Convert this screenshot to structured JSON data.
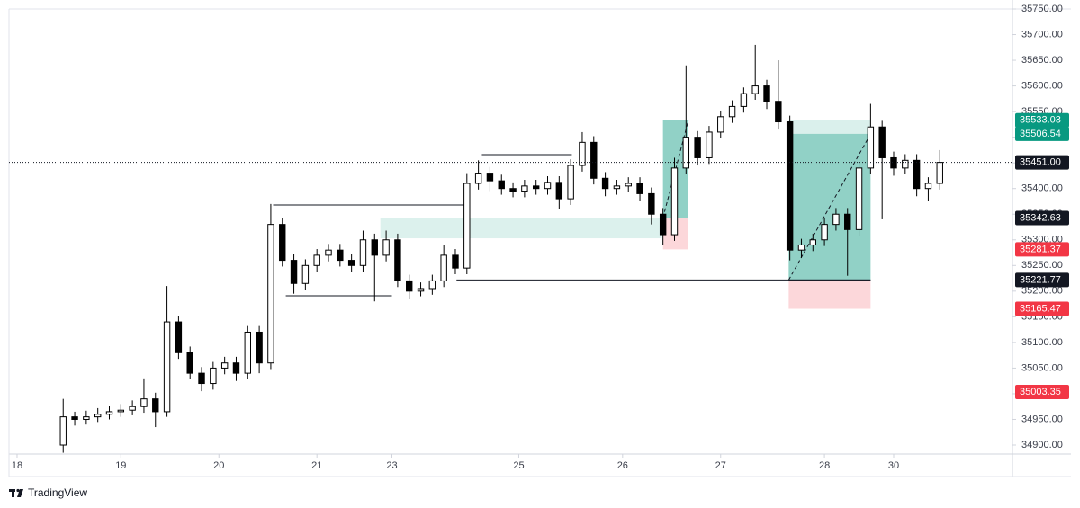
{
  "chart_data": {
    "type": "candlestick",
    "up_color": "#ffffff",
    "down_color": "#000000",
    "outline_color": "#000000",
    "xlim": [
      -4.7,
      82.3
    ],
    "xticks": [
      {
        "value": -4,
        "label": "18"
      },
      {
        "value": 5,
        "label": "19"
      },
      {
        "value": 13.5,
        "label": "20"
      },
      {
        "value": 22,
        "label": "21"
      },
      {
        "value": 28.5,
        "label": "23"
      },
      {
        "value": 39.5,
        "label": "25"
      },
      {
        "value": 48.5,
        "label": "26"
      },
      {
        "value": 57,
        "label": "27"
      },
      {
        "value": 66,
        "label": "28"
      },
      {
        "value": 72,
        "label": "30"
      }
    ],
    "ylim": [
      34882.5,
      35767.5
    ],
    "yticks": [
      {
        "value": 34900,
        "label": "34900.00"
      },
      {
        "value": 34950,
        "label": "34950.00"
      },
      {
        "value": 35000,
        "label": "35000.00"
      },
      {
        "value": 35050,
        "label": "35050.00"
      },
      {
        "value": 35100,
        "label": "35100.00"
      },
      {
        "value": 35150,
        "label": "35150.00"
      },
      {
        "value": 35200,
        "label": "35200.00"
      },
      {
        "value": 35250,
        "label": "35250.00"
      },
      {
        "value": 35300,
        "label": "35300.00"
      },
      {
        "value": 35350,
        "label": "35350.00"
      },
      {
        "value": 35400,
        "label": "35400.00"
      },
      {
        "value": 35450,
        "label": "35450.00"
      },
      {
        "value": 35500,
        "label": "35500.00"
      },
      {
        "value": 35550,
        "label": "35550.00"
      },
      {
        "value": 35600,
        "label": "35600.00"
      },
      {
        "value": 35650,
        "label": "35650.00"
      },
      {
        "value": 35700,
        "label": "35700.00"
      },
      {
        "value": 35750,
        "label": "35750.00"
      }
    ],
    "open": [
      34900,
      34955,
      34950,
      34955,
      34960,
      34965,
      34968,
      34975,
      34990,
      34965,
      35140,
      35080,
      35040,
      35020,
      35050,
      35060,
      35040,
      35120,
      35060,
      35330,
      35260,
      35215,
      35250,
      35270,
      35280,
      35260,
      35250,
      35300,
      35270,
      35300,
      35220,
      35200,
      35205,
      35220,
      35270,
      35245,
      35410,
      35430,
      35415,
      35400,
      35395,
      35405,
      35400,
      35412,
      35380,
      35445,
      35490,
      35420,
      35400,
      35405,
      35410,
      35390,
      35350,
      35310,
      35440,
      35500,
      35460,
      35510,
      35540,
      35560,
      35585,
      35600,
      35570,
      35530,
      35280,
      35290,
      35300,
      35330,
      35350,
      35320,
      35440,
      35520,
      35460,
      35440,
      35455,
      35400,
      35410
    ],
    "high": [
      34990,
      34965,
      34967,
      34972,
      34977,
      34980,
      34987,
      35030,
      35002,
      35210,
      35152,
      35092,
      35052,
      35062,
      35072,
      35072,
      35132,
      35132,
      35370,
      35342,
      35272,
      35262,
      35282,
      35292,
      35292,
      35272,
      35318,
      35312,
      35318,
      35312,
      35232,
      35217,
      35232,
      35290,
      35282,
      35430,
      35455,
      35442,
      35427,
      35412,
      35417,
      35417,
      35424,
      35424,
      35457,
      35510,
      35502,
      35432,
      35417,
      35422,
      35422,
      35402,
      35362,
      35460,
      35640,
      35512,
      35522,
      35552,
      35572,
      35597,
      35680,
      35612,
      35650,
      35542,
      35302,
      35312,
      35342,
      35362,
      35362,
      35452,
      35565,
      35532,
      35472,
      35467,
      35467,
      35422,
      35475
    ],
    "low": [
      34885,
      34938,
      34940,
      34945,
      34950,
      34955,
      34958,
      34963,
      34935,
      34955,
      35068,
      35028,
      35005,
      35008,
      35038,
      35025,
      35028,
      35040,
      35048,
      35248,
      35195,
      35203,
      35238,
      35258,
      35248,
      35238,
      35238,
      35180,
      35258,
      35208,
      35185,
      35190,
      35193,
      35208,
      35233,
      35233,
      35398,
      35395,
      35388,
      35383,
      35383,
      35388,
      35388,
      35360,
      35368,
      35433,
      35408,
      35385,
      35388,
      35393,
      35375,
      35330,
      35290,
      35298,
      35428,
      35445,
      35448,
      35498,
      35528,
      35548,
      35573,
      35555,
      35515,
      35260,
      35265,
      35278,
      35288,
      35318,
      35230,
      35308,
      35428,
      35340,
      35425,
      35428,
      35385,
      35375,
      35398
    ],
    "close": [
      34955,
      34950,
      34955,
      34960,
      34965,
      34968,
      34975,
      34990,
      34965,
      35140,
      35080,
      35040,
      35020,
      35050,
      35060,
      35040,
      35120,
      35060,
      35330,
      35260,
      35215,
      35250,
      35270,
      35280,
      35260,
      35250,
      35300,
      35270,
      35300,
      35220,
      35200,
      35205,
      35220,
      35270,
      35245,
      35410,
      35430,
      35415,
      35400,
      35395,
      35405,
      35400,
      35412,
      35380,
      35445,
      35490,
      35420,
      35400,
      35405,
      35410,
      35390,
      35350,
      35310,
      35440,
      35500,
      35460,
      35510,
      35540,
      35560,
      35585,
      35600,
      35570,
      35530,
      35280,
      35290,
      35300,
      35330,
      35350,
      35320,
      35440,
      35520,
      35460,
      35440,
      35455,
      35400,
      35410,
      35451
    ],
    "lines": [
      {
        "x": [
          18.2,
          34.9
        ],
        "y": 35368
      },
      {
        "x": [
          19.3,
          28.5
        ],
        "y": 35191
      },
      {
        "x": [
          34.1,
          70.0
        ],
        "y": 35221.77
      },
      {
        "x": [
          36.3,
          44.1
        ],
        "y": 35466
      }
    ],
    "zones": [
      {
        "x": [
          27.5,
          51.9
        ],
        "y": [
          35303,
          35342
        ]
      }
    ],
    "positions": [
      {
        "x": [
          52.0,
          54.2
        ],
        "entry": 35342.63,
        "target": 35533.03,
        "stop": 35281.37,
        "reached": 35533.03
      },
      {
        "x": [
          62.9,
          70.0
        ],
        "entry": 35221.77,
        "target": 35533.03,
        "stop": 35165.47,
        "reached": 35506.54
      }
    ],
    "price_labels": [
      {
        "value": 35533.03,
        "label": "35533.03",
        "color": "#089981"
      },
      {
        "value": 35506.54,
        "label": "35506.54",
        "color": "#089981"
      },
      {
        "value": 35451,
        "label": "35451.00",
        "color": "#131722",
        "line": "dotted"
      },
      {
        "value": 35342.63,
        "label": "35342.63",
        "color": "#131722"
      },
      {
        "value": 35281.37,
        "label": "35281.37",
        "color": "#f23645"
      },
      {
        "value": 35221.77,
        "label": "35221.77",
        "color": "#131722"
      },
      {
        "value": 35165.47,
        "label": "35165.47",
        "color": "#f23645"
      },
      {
        "value": 35003.35,
        "label": "35003.35",
        "color": "#f23645"
      }
    ],
    "brand": "TradingView"
  }
}
